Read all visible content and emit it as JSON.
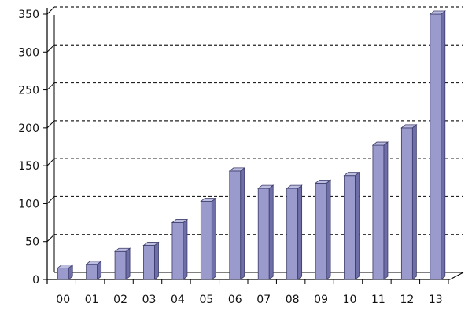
{
  "chart_data": {
    "type": "bar",
    "title": "",
    "xlabel": "",
    "ylabel": "",
    "categories": [
      "00",
      "01",
      "02",
      "03",
      "04",
      "05",
      "06",
      "07",
      "08",
      "09",
      "10",
      "11",
      "12",
      "13"
    ],
    "series": [
      {
        "values": [
          15,
          20,
          37,
          45,
          75,
          103,
          143,
          120,
          120,
          127,
          137,
          177,
          200,
          350
        ]
      }
    ],
    "ylim": [
      0,
      350
    ],
    "yticks": [
      "0",
      "50",
      "100",
      "150",
      "200",
      "250",
      "300",
      "350"
    ],
    "gridlines": "dashed-horizontal",
    "legend": "none",
    "colors": {
      "bar_front": "#9A9ACC",
      "bar_side": "#6E6EA8",
      "bar_top": "#BDBDE0",
      "axis": "#000000"
    }
  }
}
